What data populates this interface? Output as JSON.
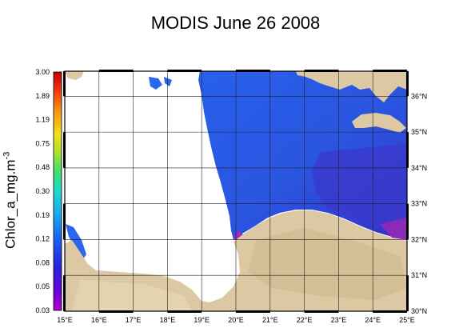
{
  "title": "MODIS June 26 2008",
  "colorbar": {
    "label_main": "Chlor_a_mg.m",
    "label_sup": "-3",
    "ticks": [
      "3.00",
      "1.89",
      "1.19",
      "0.75",
      "0.48",
      "0.30",
      "0.19",
      "0.12",
      "0.08",
      "0.05",
      "0.03"
    ],
    "scale": "log"
  },
  "axes": {
    "lon_labels": [
      "15°E",
      "16°E",
      "17°E",
      "18°E",
      "19°E",
      "20°E",
      "21°E",
      "22°E",
      "23°E",
      "24°E",
      "25°E"
    ],
    "lat_labels": [
      "36°N",
      "35°N",
      "34°N",
      "33°N",
      "32°N",
      "31°N",
      "30°N"
    ],
    "lon_range": [
      15,
      25
    ],
    "lat_range": [
      30,
      36.7
    ]
  },
  "colors": {
    "land": "#dcc9a3",
    "sea_main": "#2a5de8",
    "sea_east": "#3a3fd0",
    "coastal_high": "#8a2ab0",
    "no_data": "#ffffff"
  }
}
